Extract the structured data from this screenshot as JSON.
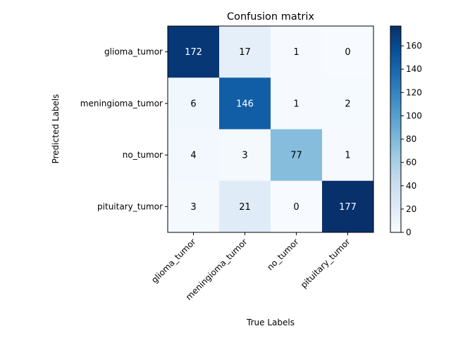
{
  "chart_data": {
    "type": "heatmap",
    "title": "Confusion matrix",
    "xlabel": "True Labels",
    "ylabel": "Predicted Labels",
    "x_categories": [
      "glioma_tumor",
      "meningioma_tumor",
      "no_tumor",
      "pituitary_tumor"
    ],
    "y_categories": [
      "glioma_tumor",
      "meningioma_tumor",
      "no_tumor",
      "pituitary_tumor"
    ],
    "values": [
      [
        172,
        17,
        1,
        0
      ],
      [
        6,
        146,
        1,
        2
      ],
      [
        4,
        3,
        77,
        1
      ],
      [
        3,
        21,
        0,
        177
      ]
    ],
    "colormap": "Blues",
    "colorbar": {
      "min": 0,
      "max": 177,
      "ticks": [
        0,
        20,
        40,
        60,
        80,
        100,
        120,
        140,
        160
      ]
    },
    "grid": false
  }
}
